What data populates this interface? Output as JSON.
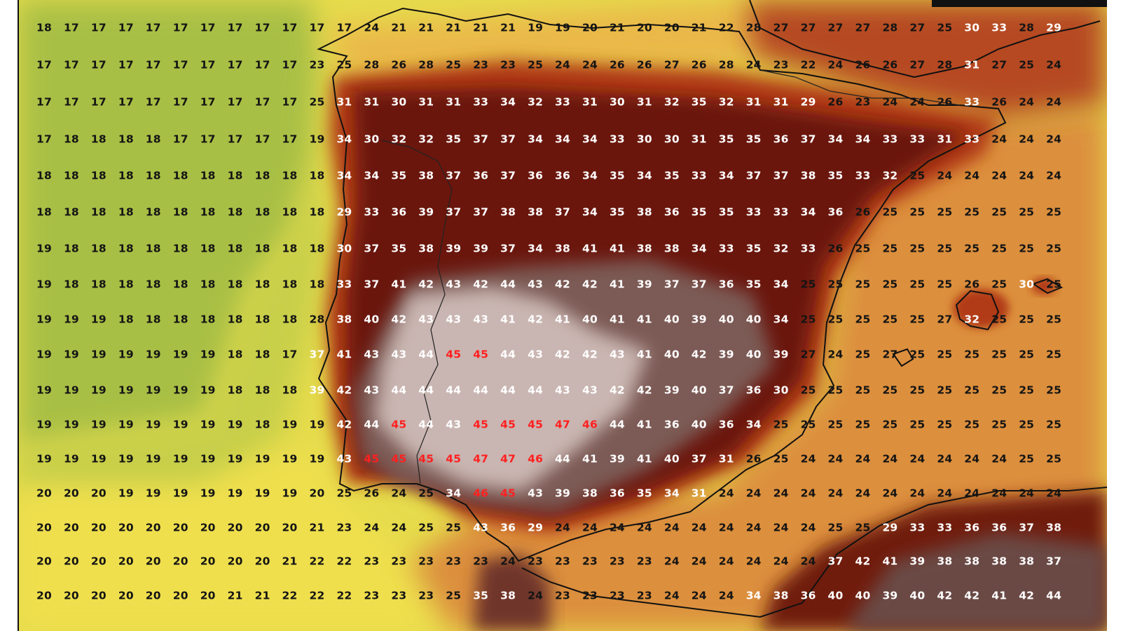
{
  "map": {
    "colors": {
      "ocean_cool": "#a9c045",
      "ocean_mild": "#d9d94a",
      "ocean_warm": "#f0e050",
      "sea_orange": "#dd9040",
      "land_red": "#b83a16",
      "land_dark": "#6e1508",
      "land_gray": "#7a5a55",
      "land_light": "#c8b4b0",
      "text_dark": "#141414",
      "text_light": "#ffffff",
      "text_hot": "#ff2020"
    },
    "rows": [
      [
        18,
        17,
        17,
        17,
        17,
        17,
        17,
        17,
        17,
        17,
        17,
        17,
        24,
        21,
        21,
        21,
        21,
        21,
        19,
        19,
        20,
        21,
        20,
        20,
        21,
        22,
        28,
        27,
        27,
        27,
        27,
        28,
        27,
        25,
        30,
        33,
        28,
        29
      ],
      [
        17,
        17,
        17,
        17,
        17,
        17,
        17,
        17,
        17,
        17,
        23,
        25,
        28,
        26,
        28,
        25,
        23,
        23,
        25,
        24,
        24,
        26,
        26,
        27,
        26,
        28,
        24,
        23,
        22,
        24,
        26,
        26,
        27,
        28,
        31,
        27,
        25,
        24
      ],
      [
        17,
        17,
        17,
        17,
        17,
        17,
        17,
        17,
        17,
        17,
        25,
        31,
        31,
        30,
        31,
        31,
        33,
        34,
        32,
        33,
        31,
        30,
        31,
        32,
        35,
        32,
        31,
        31,
        29,
        26,
        23,
        24,
        24,
        26,
        33,
        26,
        24,
        24
      ],
      [
        17,
        18,
        18,
        18,
        18,
        17,
        17,
        17,
        17,
        17,
        19,
        34,
        30,
        32,
        32,
        35,
        37,
        37,
        34,
        34,
        34,
        33,
        30,
        30,
        31,
        35,
        35,
        36,
        37,
        34,
        34,
        33,
        33,
        31,
        33,
        24,
        24,
        24
      ],
      [
        18,
        18,
        18,
        18,
        18,
        18,
        18,
        18,
        18,
        18,
        18,
        34,
        34,
        35,
        38,
        37,
        36,
        37,
        36,
        36,
        34,
        35,
        34,
        35,
        33,
        34,
        37,
        37,
        38,
        35,
        33,
        32,
        25,
        24,
        24,
        24,
        24,
        24
      ],
      [
        18,
        18,
        18,
        18,
        18,
        18,
        18,
        18,
        18,
        18,
        18,
        29,
        33,
        36,
        39,
        37,
        37,
        38,
        38,
        37,
        34,
        35,
        38,
        36,
        35,
        35,
        33,
        33,
        34,
        36,
        26,
        25,
        25,
        25,
        25,
        25,
        25,
        25
      ],
      [
        19,
        18,
        18,
        18,
        18,
        18,
        18,
        18,
        18,
        18,
        18,
        30,
        37,
        35,
        38,
        39,
        39,
        37,
        34,
        38,
        41,
        41,
        38,
        38,
        34,
        33,
        35,
        32,
        33,
        26,
        25,
        25,
        25,
        25,
        25,
        25,
        25,
        25
      ],
      [
        19,
        18,
        18,
        18,
        18,
        18,
        18,
        18,
        18,
        18,
        18,
        33,
        37,
        41,
        42,
        43,
        42,
        44,
        43,
        42,
        42,
        41,
        39,
        37,
        37,
        36,
        35,
        34,
        25,
        25,
        25,
        25,
        25,
        25,
        26,
        25,
        30,
        25
      ],
      [
        19,
        19,
        19,
        18,
        18,
        18,
        18,
        18,
        18,
        18,
        28,
        38,
        40,
        42,
        43,
        43,
        43,
        41,
        42,
        41,
        40,
        41,
        41,
        40,
        39,
        40,
        40,
        34,
        25,
        25,
        25,
        25,
        25,
        27,
        32,
        25,
        25,
        25
      ],
      [
        19,
        19,
        19,
        19,
        19,
        19,
        19,
        18,
        18,
        17,
        37,
        41,
        43,
        43,
        44,
        45,
        45,
        44,
        43,
        42,
        42,
        43,
        41,
        40,
        42,
        39,
        40,
        39,
        27,
        24,
        25,
        27,
        25,
        25,
        25,
        25,
        25,
        25
      ],
      [
        19,
        19,
        19,
        19,
        19,
        19,
        19,
        18,
        18,
        18,
        39,
        42,
        43,
        44,
        44,
        44,
        44,
        44,
        44,
        43,
        43,
        42,
        42,
        39,
        40,
        37,
        36,
        30,
        25,
        25,
        25,
        25,
        25,
        25,
        25,
        25,
        25,
        25
      ],
      [
        19,
        19,
        19,
        19,
        19,
        19,
        19,
        19,
        18,
        19,
        19,
        42,
        44,
        45,
        44,
        43,
        45,
        45,
        45,
        47,
        46,
        44,
        41,
        36,
        40,
        36,
        34,
        25,
        25,
        25,
        25,
        25,
        25,
        25,
        25,
        25,
        25,
        25
      ],
      [
        19,
        19,
        19,
        19,
        19,
        19,
        19,
        19,
        19,
        19,
        19,
        43,
        45,
        45,
        45,
        45,
        47,
        47,
        46,
        44,
        41,
        39,
        41,
        40,
        37,
        31,
        26,
        25,
        24,
        24,
        24,
        24,
        24,
        24,
        24,
        24,
        25,
        25
      ],
      [
        20,
        20,
        20,
        19,
        19,
        19,
        19,
        19,
        19,
        19,
        20,
        25,
        26,
        24,
        25,
        34,
        46,
        45,
        43,
        39,
        38,
        36,
        35,
        34,
        31,
        24,
        24,
        24,
        24,
        24,
        24,
        24,
        24,
        24,
        24,
        24,
        24,
        24
      ],
      [
        20,
        20,
        20,
        20,
        20,
        20,
        20,
        20,
        20,
        20,
        21,
        23,
        24,
        24,
        25,
        25,
        43,
        36,
        29,
        24,
        24,
        24,
        24,
        24,
        24,
        24,
        24,
        24,
        24,
        25,
        25,
        29,
        33,
        33,
        36,
        36,
        37,
        38
      ],
      [
        20,
        20,
        20,
        20,
        20,
        20,
        20,
        20,
        20,
        21,
        22,
        22,
        23,
        23,
        23,
        23,
        23,
        24,
        23,
        23,
        23,
        23,
        23,
        24,
        24,
        24,
        24,
        24,
        24,
        37,
        42,
        41,
        39,
        38,
        38,
        38,
        38,
        37
      ],
      [
        20,
        20,
        20,
        20,
        20,
        20,
        20,
        21,
        21,
        22,
        22,
        22,
        23,
        23,
        23,
        25,
        35,
        38,
        24,
        23,
        23,
        23,
        23,
        24,
        24,
        24,
        34,
        38,
        36,
        40,
        40,
        39,
        40,
        42,
        42,
        41,
        42,
        44
      ]
    ]
  }
}
